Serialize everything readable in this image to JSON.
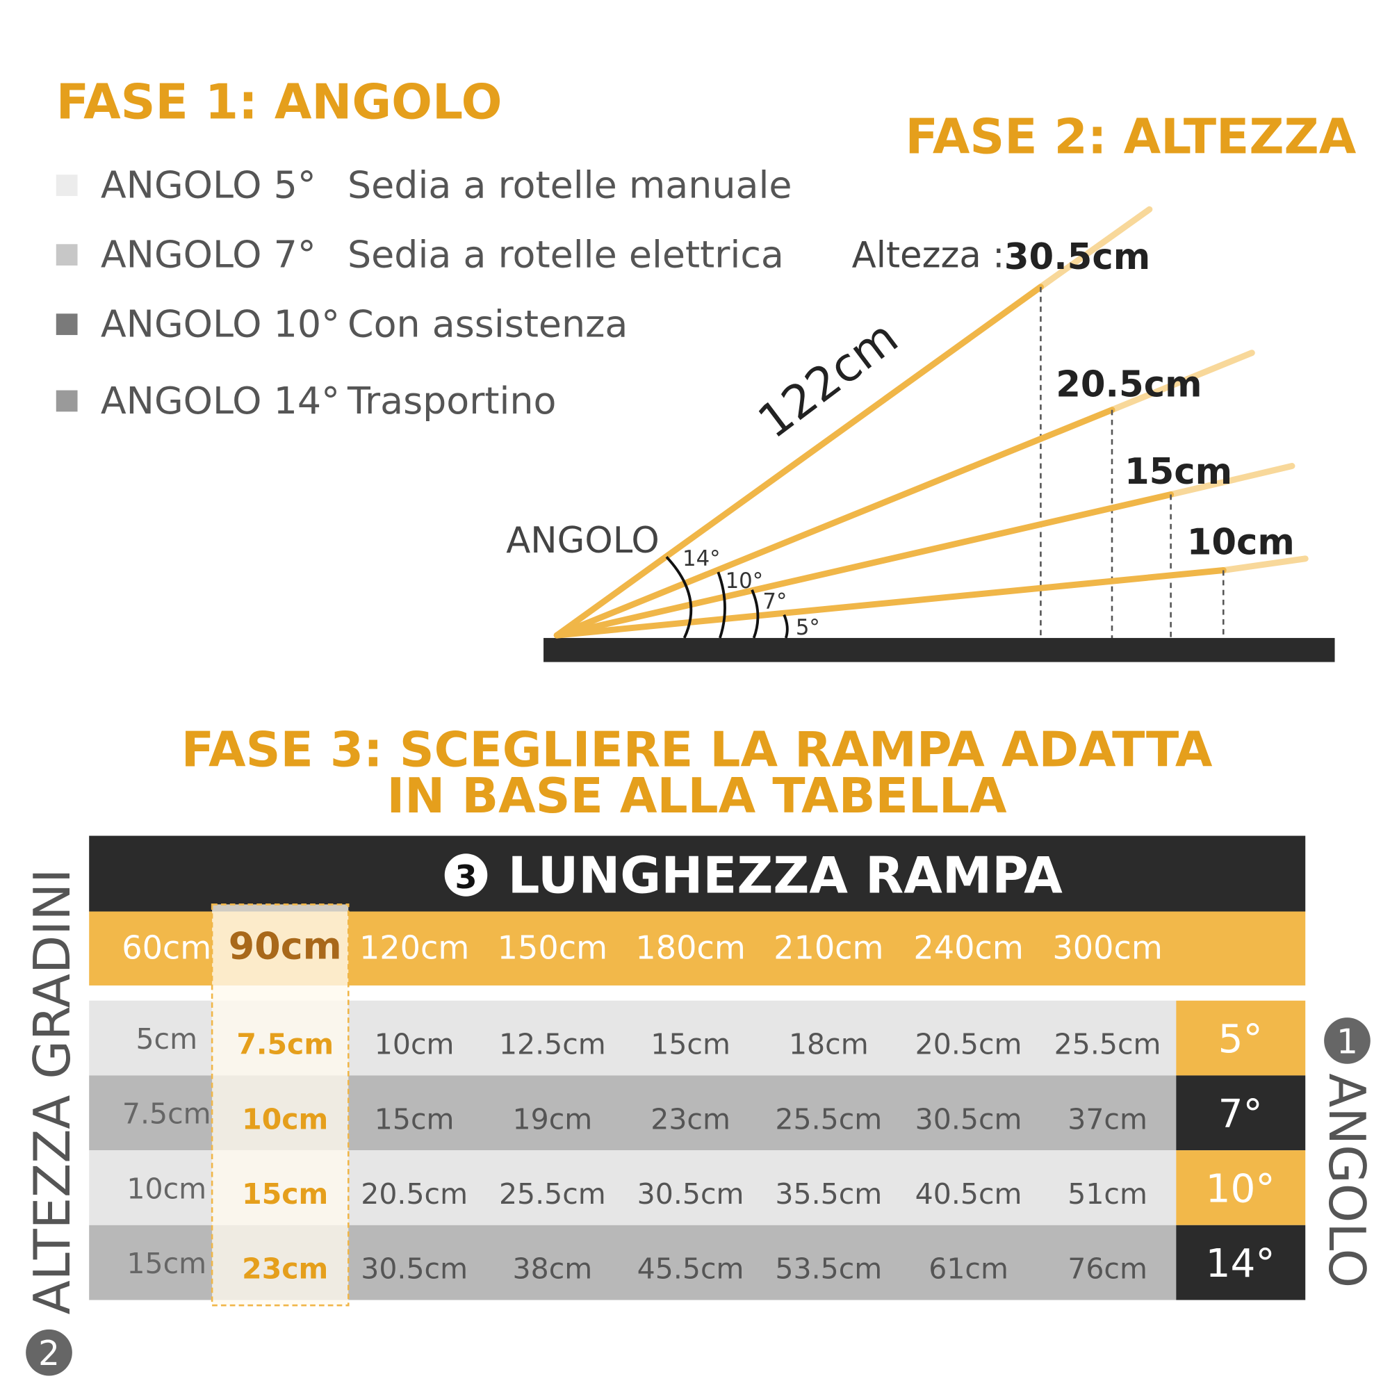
{
  "step1": {
    "title": "FASE 1: ANGOLO",
    "items": [
      {
        "angle": "ANGOLO 5°",
        "use": "Sedia a rotelle manuale"
      },
      {
        "angle": "ANGOLO 7°",
        "use": "Sedia a rotelle elettrica"
      },
      {
        "angle": "ANGOLO 10°",
        "use": "Con assistenza"
      },
      {
        "angle": "ANGOLO 14°",
        "use": "Trasportino"
      }
    ]
  },
  "step2": {
    "title": "FASE 2: ALTEZZA",
    "height_label": "Altezza :",
    "length": "122cm",
    "angle_label": "ANGOLO",
    "heights": [
      "30.5cm",
      "20.5cm",
      "15cm",
      "10cm"
    ],
    "angles": [
      "14°",
      "10°",
      "7°",
      "5°"
    ]
  },
  "step3": {
    "title_lines": [
      "FASE 3: SCEGLIERE LA RAMPA ADATTA",
      "IN BASE ALLA TABELLA"
    ],
    "table": {
      "header_badge": "3",
      "header": "LUNGHEZZA RAMPA",
      "columns": [
        "60cm",
        "90cm",
        "120cm",
        "150cm",
        "180cm",
        "210cm",
        "240cm",
        "300cm"
      ],
      "rows": [
        [
          "5cm",
          "7.5cm",
          "10cm",
          "12.5cm",
          "15cm",
          "18cm",
          "20.5cm",
          "25.5cm"
        ],
        [
          "7.5cm",
          "10cm",
          "15cm",
          "19cm",
          "23cm",
          "25.5cm",
          "30.5cm",
          "37cm"
        ],
        [
          "10cm",
          "15cm",
          "20.5cm",
          "25.5cm",
          "30.5cm",
          "35.5cm",
          "40.5cm",
          "51cm"
        ],
        [
          "15cm",
          "23cm",
          "30.5cm",
          "38cm",
          "45.5cm",
          "53.5cm",
          "61cm",
          "76cm"
        ]
      ],
      "row_angles": [
        "5°",
        "7°",
        "10°",
        "14°"
      ]
    },
    "left_badge": "2",
    "left_label": "ALTEZZA GRADINI",
    "right_badge": "1",
    "right_label": "ANGOLO"
  }
}
